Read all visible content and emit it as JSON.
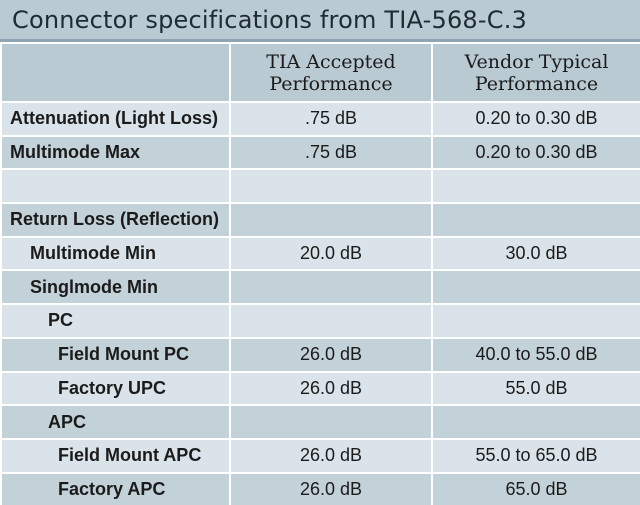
{
  "title": "Connector specifications from TIA-568-C.3",
  "columns": {
    "tia": [
      "TIA Accepted",
      "Performance"
    ],
    "vendor": [
      "Vendor Typical",
      "Performance"
    ]
  },
  "rows": [
    {
      "label": "Attenuation (Light Loss)",
      "indent": 0,
      "tia": ".75 dB",
      "vendor": "0.20 to 0.30 dB"
    },
    {
      "label": "Multimode Max",
      "indent": 0,
      "tia": ".75 dB",
      "vendor": "0.20 to 0.30 dB"
    },
    {
      "label": "",
      "indent": 0,
      "tia": "",
      "vendor": ""
    },
    {
      "label": "Return Loss (Reflection)",
      "indent": 0,
      "tia": "",
      "vendor": ""
    },
    {
      "label": "Multimode Min",
      "indent": 1,
      "tia": "20.0 dB",
      "vendor": "30.0 dB"
    },
    {
      "label": "Singlmode Min",
      "indent": 1,
      "tia": "",
      "vendor": ""
    },
    {
      "label": "PC",
      "indent": 2,
      "tia": "",
      "vendor": ""
    },
    {
      "label": "Field Mount PC",
      "indent": 3,
      "tia": "26.0 dB",
      "vendor": "40.0 to 55.0 dB"
    },
    {
      "label": "Factory UPC",
      "indent": 3,
      "tia": "26.0 dB",
      "vendor": "55.0 dB"
    },
    {
      "label": "APC",
      "indent": 2,
      "tia": "",
      "vendor": ""
    },
    {
      "label": "Field Mount APC",
      "indent": 3,
      "tia": "26.0 dB",
      "vendor": "55.0 to 65.0 dB"
    },
    {
      "label": "Factory APC",
      "indent": 3,
      "tia": "26.0 dB",
      "vendor": "65.0 dB"
    }
  ]
}
